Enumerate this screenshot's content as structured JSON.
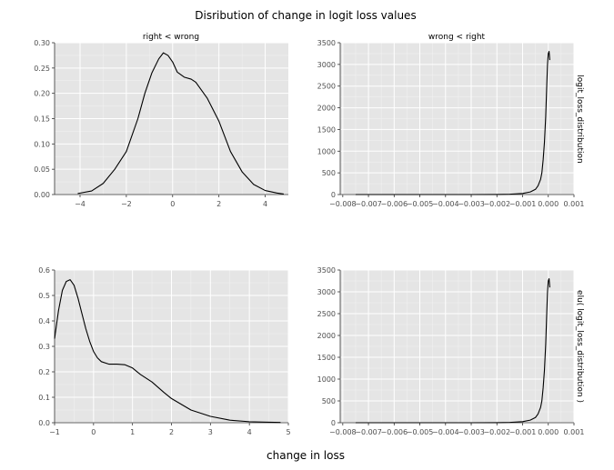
{
  "figure": {
    "title": "Disribution of change in logit loss values",
    "xlabel": "change in loss",
    "strip_top_left": "right < wrong",
    "strip_top_right": "wrong < right",
    "strip_right_top": "logit_loss_distribution",
    "strip_right_bottom": "elu( logit_loss_distribution )"
  },
  "colors": {
    "panel_bg": "#E5E5E5",
    "grid_major": "#FFFFFF",
    "line": "#000000",
    "tick_text": "#4D4D4D"
  },
  "chart_data": [
    {
      "id": "p1",
      "type": "line",
      "facet_row": "logit_loss_distribution",
      "facet_col": "right < wrong",
      "xlim": [
        -5.1,
        5.0
      ],
      "ylim": [
        0,
        0.3
      ],
      "xticks": [
        -4,
        -2,
        0,
        2,
        4
      ],
      "xtick_labels": [
        "−4",
        "−2",
        "0",
        "2",
        "4"
      ],
      "yticks": [
        0.0,
        0.05,
        0.1,
        0.15,
        0.2,
        0.25,
        0.3
      ],
      "ytick_labels": [
        "0.00",
        "0.05",
        "0.10",
        "0.15",
        "0.20",
        "0.25",
        "0.30"
      ],
      "x": [
        -4.1,
        -3.5,
        -3.0,
        -2.5,
        -2.0,
        -1.5,
        -1.2,
        -0.9,
        -0.6,
        -0.4,
        -0.2,
        0.0,
        0.2,
        0.5,
        0.8,
        1.0,
        1.5,
        2.0,
        2.5,
        3.0,
        3.5,
        4.0,
        4.5,
        4.8
      ],
      "y": [
        0.002,
        0.007,
        0.022,
        0.05,
        0.085,
        0.15,
        0.2,
        0.24,
        0.268,
        0.28,
        0.275,
        0.262,
        0.242,
        0.232,
        0.228,
        0.222,
        0.19,
        0.145,
        0.085,
        0.045,
        0.02,
        0.008,
        0.003,
        0.001
      ]
    },
    {
      "id": "p2",
      "type": "line",
      "facet_row": "logit_loss_distribution",
      "facet_col": "wrong < right",
      "xlim": [
        -0.0081,
        0.001
      ],
      "ylim": [
        0,
        3500
      ],
      "xticks": [
        -0.008,
        -0.007,
        -0.006,
        -0.005,
        -0.004,
        -0.003,
        -0.002,
        -0.001,
        0.0,
        0.001
      ],
      "xtick_labels": [
        "−0.008",
        "−0.007",
        "−0.006",
        "−0.005",
        "−0.004",
        "−0.003",
        "−0.002",
        "−0.001",
        "0.000",
        "0.001"
      ],
      "yticks": [
        0,
        500,
        1000,
        1500,
        2000,
        2500,
        3000,
        3500
      ],
      "ytick_labels": [
        "0",
        "500",
        "1000",
        "1500",
        "2000",
        "2500",
        "3000",
        "3500"
      ],
      "x": [
        -0.0075,
        -0.005,
        -0.003,
        -0.002,
        -0.0015,
        -0.001,
        -0.0007,
        -0.0005,
        -0.0004,
        -0.0003,
        -0.00025,
        -0.0002,
        -0.00015,
        -0.0001,
        -6e-05,
        -3e-05,
        0.0,
        3e-05,
        6e-05
      ],
      "y": [
        0,
        0,
        0,
        2,
        8,
        25,
        60,
        120,
        200,
        350,
        500,
        800,
        1200,
        1800,
        2500,
        3000,
        3250,
        3300,
        3100
      ]
    },
    {
      "id": "p3",
      "type": "line",
      "facet_row": "elu( logit_loss_distribution )",
      "facet_col": "right < wrong",
      "xlim": [
        -1.0,
        5.0
      ],
      "ylim": [
        0,
        0.6
      ],
      "xticks": [
        -1,
        0,
        1,
        2,
        3,
        4,
        5
      ],
      "xtick_labels": [
        "−1",
        "0",
        "1",
        "2",
        "3",
        "4",
        "5"
      ],
      "yticks": [
        0.0,
        0.1,
        0.2,
        0.3,
        0.4,
        0.5,
        0.6
      ],
      "ytick_labels": [
        "0.0",
        "0.1",
        "0.2",
        "0.3",
        "0.4",
        "0.5",
        "0.6"
      ],
      "x": [
        -1.0,
        -0.9,
        -0.8,
        -0.7,
        -0.6,
        -0.5,
        -0.4,
        -0.3,
        -0.2,
        -0.1,
        0.0,
        0.1,
        0.2,
        0.4,
        0.6,
        0.8,
        1.0,
        1.2,
        1.5,
        1.8,
        2.0,
        2.5,
        3.0,
        3.5,
        4.0,
        4.5,
        4.8
      ],
      "y": [
        0.33,
        0.44,
        0.52,
        0.555,
        0.562,
        0.54,
        0.49,
        0.43,
        0.37,
        0.32,
        0.28,
        0.255,
        0.24,
        0.23,
        0.23,
        0.228,
        0.215,
        0.19,
        0.16,
        0.12,
        0.095,
        0.05,
        0.025,
        0.01,
        0.004,
        0.002,
        0.001
      ]
    },
    {
      "id": "p4",
      "type": "line",
      "facet_row": "elu( logit_loss_distribution )",
      "facet_col": "wrong < right",
      "xlim": [
        -0.0081,
        0.001
      ],
      "ylim": [
        0,
        3500
      ],
      "xticks": [
        -0.008,
        -0.007,
        -0.006,
        -0.005,
        -0.004,
        -0.003,
        -0.002,
        -0.001,
        0.0,
        0.001
      ],
      "xtick_labels": [
        "−0.008",
        "−0.007",
        "−0.006",
        "−0.005",
        "−0.004",
        "−0.003",
        "−0.002",
        "−0.001",
        "0.000",
        "0.001"
      ],
      "yticks": [
        0,
        500,
        1000,
        1500,
        2000,
        2500,
        3000,
        3500
      ],
      "ytick_labels": [
        "0",
        "500",
        "1000",
        "1500",
        "2000",
        "2500",
        "3000",
        "3500"
      ],
      "x": [
        -0.0075,
        -0.005,
        -0.003,
        -0.002,
        -0.0015,
        -0.001,
        -0.0007,
        -0.0005,
        -0.0004,
        -0.0003,
        -0.00025,
        -0.0002,
        -0.00015,
        -0.0001,
        -6e-05,
        -3e-05,
        0.0,
        3e-05,
        6e-05
      ],
      "y": [
        0,
        0,
        0,
        2,
        8,
        25,
        60,
        120,
        200,
        350,
        500,
        800,
        1200,
        1800,
        2500,
        3000,
        3250,
        3300,
        3100
      ]
    }
  ]
}
